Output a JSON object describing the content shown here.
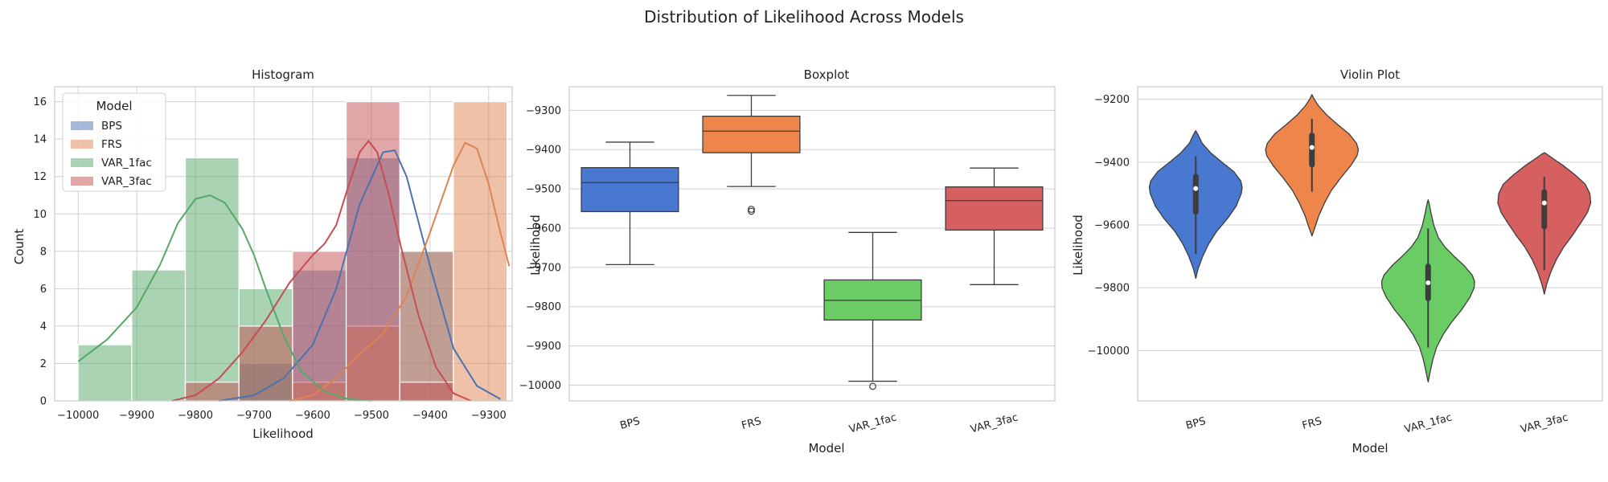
{
  "figure_title": "Distribution of Likelihood Across Models",
  "palette": {
    "BPS": "#4c72b0",
    "FRS": "#dd8452",
    "VAR_1fac": "#55a868",
    "VAR_3fac": "#c44e52"
  },
  "box_palette": {
    "BPS": "#4878d0",
    "FRS": "#ee854a",
    "VAR_1fac": "#6acc64",
    "VAR_3fac": "#d65f5f"
  },
  "chart_data": [
    {
      "type": "histogram",
      "title": "Histogram",
      "xlabel": "Likelihood",
      "ylabel": "Count",
      "xlim": [
        -10040,
        -9260
      ],
      "ylim": [
        0,
        16.8
      ],
      "xticks": [
        -10000,
        -9900,
        -9800,
        -9700,
        -9600,
        -9500,
        -9400,
        -9300
      ],
      "yticks": [
        0,
        2,
        4,
        6,
        8,
        10,
        12,
        14,
        16
      ],
      "grid": true,
      "legend": {
        "title": "Model",
        "position": "top-left"
      },
      "bin_edges": [
        -10000,
        -9908.6,
        -9817.2,
        -9725.8,
        -9634.4,
        -9543,
        -9451.6,
        -9360.2,
        -9268.8
      ],
      "series": [
        {
          "name": "BPS",
          "counts": [
            0,
            0,
            0,
            2,
            7,
            13,
            8,
            0
          ],
          "kde": [
            [
              -9760,
              0
            ],
            [
              -9700,
              0.3
            ],
            [
              -9650,
              1.2
            ],
            [
              -9600,
              3.0
            ],
            [
              -9560,
              6.0
            ],
            [
              -9520,
              10.5
            ],
            [
              -9480,
              13.3
            ],
            [
              -9460,
              13.4
            ],
            [
              -9440,
              12.0
            ],
            [
              -9400,
              7.2
            ],
            [
              -9360,
              2.8
            ],
            [
              -9320,
              0.8
            ],
            [
              -9280,
              0.1
            ]
          ]
        },
        {
          "name": "FRS",
          "counts": [
            0,
            0,
            0,
            0,
            1,
            4,
            8,
            16
          ],
          "kde": [
            [
              -9640,
              0
            ],
            [
              -9600,
              0.3
            ],
            [
              -9560,
              1.2
            ],
            [
              -9520,
              2.5
            ],
            [
              -9480,
              3.6
            ],
            [
              -9440,
              5.6
            ],
            [
              -9400,
              9.0
            ],
            [
              -9360,
              12.6
            ],
            [
              -9340,
              13.8
            ],
            [
              -9320,
              13.5
            ],
            [
              -9300,
              11.6
            ],
            [
              -9280,
              9.0
            ],
            [
              -9265,
              7.2
            ]
          ]
        },
        {
          "name": "VAR_1fac",
          "counts": [
            3,
            7,
            13,
            6,
            0,
            0,
            0,
            0
          ],
          "kde": [
            [
              -10000,
              2.1
            ],
            [
              -9950,
              3.3
            ],
            [
              -9900,
              5.0
            ],
            [
              -9860,
              7.3
            ],
            [
              -9830,
              9.5
            ],
            [
              -9800,
              10.8
            ],
            [
              -9775,
              11.0
            ],
            [
              -9750,
              10.6
            ],
            [
              -9720,
              9.2
            ],
            [
              -9700,
              7.8
            ],
            [
              -9680,
              6.0
            ],
            [
              -9650,
              3.5
            ],
            [
              -9620,
              1.6
            ],
            [
              -9580,
              0.5
            ],
            [
              -9540,
              0.1
            ],
            [
              -9500,
              0
            ]
          ]
        },
        {
          "name": "VAR_3fac",
          "counts": [
            0,
            0,
            1,
            4,
            8,
            16,
            1,
            0
          ],
          "kde": [
            [
              -9840,
              0
            ],
            [
              -9800,
              0.3
            ],
            [
              -9760,
              1.2
            ],
            [
              -9720,
              2.6
            ],
            [
              -9680,
              4.3
            ],
            [
              -9640,
              6.3
            ],
            [
              -9600,
              7.8
            ],
            [
              -9580,
              8.4
            ],
            [
              -9560,
              9.4
            ],
            [
              -9540,
              11.4
            ],
            [
              -9520,
              13.3
            ],
            [
              -9505,
              13.9
            ],
            [
              -9490,
              13.3
            ],
            [
              -9470,
              11.0
            ],
            [
              -9450,
              8.3
            ],
            [
              -9420,
              4.6
            ],
            [
              -9390,
              1.8
            ],
            [
              -9360,
              0.4
            ],
            [
              -9330,
              0
            ]
          ]
        }
      ]
    },
    {
      "type": "box",
      "title": "Boxplot",
      "xlabel": "Model",
      "ylabel": "Likelihood",
      "ylim": [
        -10040,
        -9240
      ],
      "yticks": [
        -10000,
        -9900,
        -9800,
        -9700,
        -9600,
        -9500,
        -9400,
        -9300
      ],
      "categories": [
        "BPS",
        "FRS",
        "VAR_1fac",
        "VAR_3fac"
      ],
      "grid": true,
      "boxes": [
        {
          "name": "BPS",
          "whislo": -9693,
          "q1": -9558,
          "med": -9484,
          "q3": -9446,
          "whishi": -9381,
          "fliers": []
        },
        {
          "name": "FRS",
          "whislo": -9494,
          "q1": -9408,
          "med": -9353,
          "q3": -9315,
          "whishi": -9262,
          "fliers": [
            -9552,
            -9557
          ]
        },
        {
          "name": "VAR_1fac",
          "whislo": -9990,
          "q1": -9834,
          "med": -9784,
          "q3": -9732,
          "whishi": -9611,
          "fliers": [
            -10003
          ]
        },
        {
          "name": "VAR_3fac",
          "whislo": -9744,
          "q1": -9605,
          "med": -9530,
          "q3": -9495,
          "whishi": -9447,
          "fliers": []
        }
      ]
    },
    {
      "type": "violin",
      "title": "Violin Plot",
      "xlabel": "Model",
      "ylabel": "Likelihood",
      "ylim": [
        -10160,
        -9160
      ],
      "yticks": [
        -10000,
        -9800,
        -9600,
        -9400,
        -9200
      ],
      "categories": [
        "BPS",
        "FRS",
        "VAR_1fac",
        "VAR_3fac"
      ],
      "grid": true,
      "violins": [
        {
          "name": "BPS",
          "q1": -9558,
          "med": -9484,
          "q3": -9446,
          "whislo": -9693,
          "whishi": -9381,
          "profile": [
            [
              -9770,
              0
            ],
            [
              -9740,
              0.05
            ],
            [
              -9700,
              0.15
            ],
            [
              -9660,
              0.28
            ],
            [
              -9620,
              0.45
            ],
            [
              -9580,
              0.68
            ],
            [
              -9540,
              0.87
            ],
            [
              -9500,
              0.98
            ],
            [
              -9480,
              1.0
            ],
            [
              -9460,
              0.97
            ],
            [
              -9430,
              0.82
            ],
            [
              -9400,
              0.56
            ],
            [
              -9370,
              0.32
            ],
            [
              -9340,
              0.14
            ],
            [
              -9310,
              0.04
            ],
            [
              -9300,
              0
            ]
          ]
        },
        {
          "name": "FRS",
          "q1": -9408,
          "med": -9353,
          "q3": -9315,
          "whislo": -9494,
          "whishi": -9262,
          "profile": [
            [
              -9635,
              0
            ],
            [
              -9610,
              0.06
            ],
            [
              -9570,
              0.15
            ],
            [
              -9530,
              0.27
            ],
            [
              -9490,
              0.42
            ],
            [
              -9450,
              0.62
            ],
            [
              -9410,
              0.84
            ],
            [
              -9380,
              0.97
            ],
            [
              -9360,
              1.0
            ],
            [
              -9340,
              0.96
            ],
            [
              -9310,
              0.8
            ],
            [
              -9280,
              0.55
            ],
            [
              -9250,
              0.32
            ],
            [
              -9220,
              0.14
            ],
            [
              -9200,
              0.05
            ],
            [
              -9185,
              0
            ]
          ]
        },
        {
          "name": "VAR_1fac",
          "q1": -9834,
          "med": -9784,
          "q3": -9732,
          "whislo": -9990,
          "whishi": -9611,
          "profile": [
            [
              -10100,
              0
            ],
            [
              -10070,
              0.04
            ],
            [
              -10030,
              0.1
            ],
            [
              -9990,
              0.18
            ],
            [
              -9950,
              0.32
            ],
            [
              -9910,
              0.5
            ],
            [
              -9870,
              0.72
            ],
            [
              -9830,
              0.9
            ],
            [
              -9800,
              0.99
            ],
            [
              -9780,
              1.0
            ],
            [
              -9760,
              0.95
            ],
            [
              -9730,
              0.78
            ],
            [
              -9700,
              0.56
            ],
            [
              -9670,
              0.36
            ],
            [
              -9640,
              0.22
            ],
            [
              -9600,
              0.12
            ],
            [
              -9560,
              0.06
            ],
            [
              -9530,
              0.02
            ],
            [
              -9520,
              0
            ]
          ]
        },
        {
          "name": "VAR_3fac",
          "q1": -9605,
          "med": -9530,
          "q3": -9495,
          "whislo": -9744,
          "whishi": -9447,
          "profile": [
            [
              -9820,
              0
            ],
            [
              -9790,
              0.05
            ],
            [
              -9750,
              0.14
            ],
            [
              -9710,
              0.26
            ],
            [
              -9670,
              0.42
            ],
            [
              -9630,
              0.62
            ],
            [
              -9590,
              0.8
            ],
            [
              -9560,
              0.93
            ],
            [
              -9530,
              1.0
            ],
            [
              -9500,
              0.98
            ],
            [
              -9470,
              0.88
            ],
            [
              -9440,
              0.66
            ],
            [
              -9410,
              0.4
            ],
            [
              -9390,
              0.2
            ],
            [
              -9375,
              0.06
            ],
            [
              -9370,
              0
            ]
          ]
        }
      ]
    }
  ]
}
